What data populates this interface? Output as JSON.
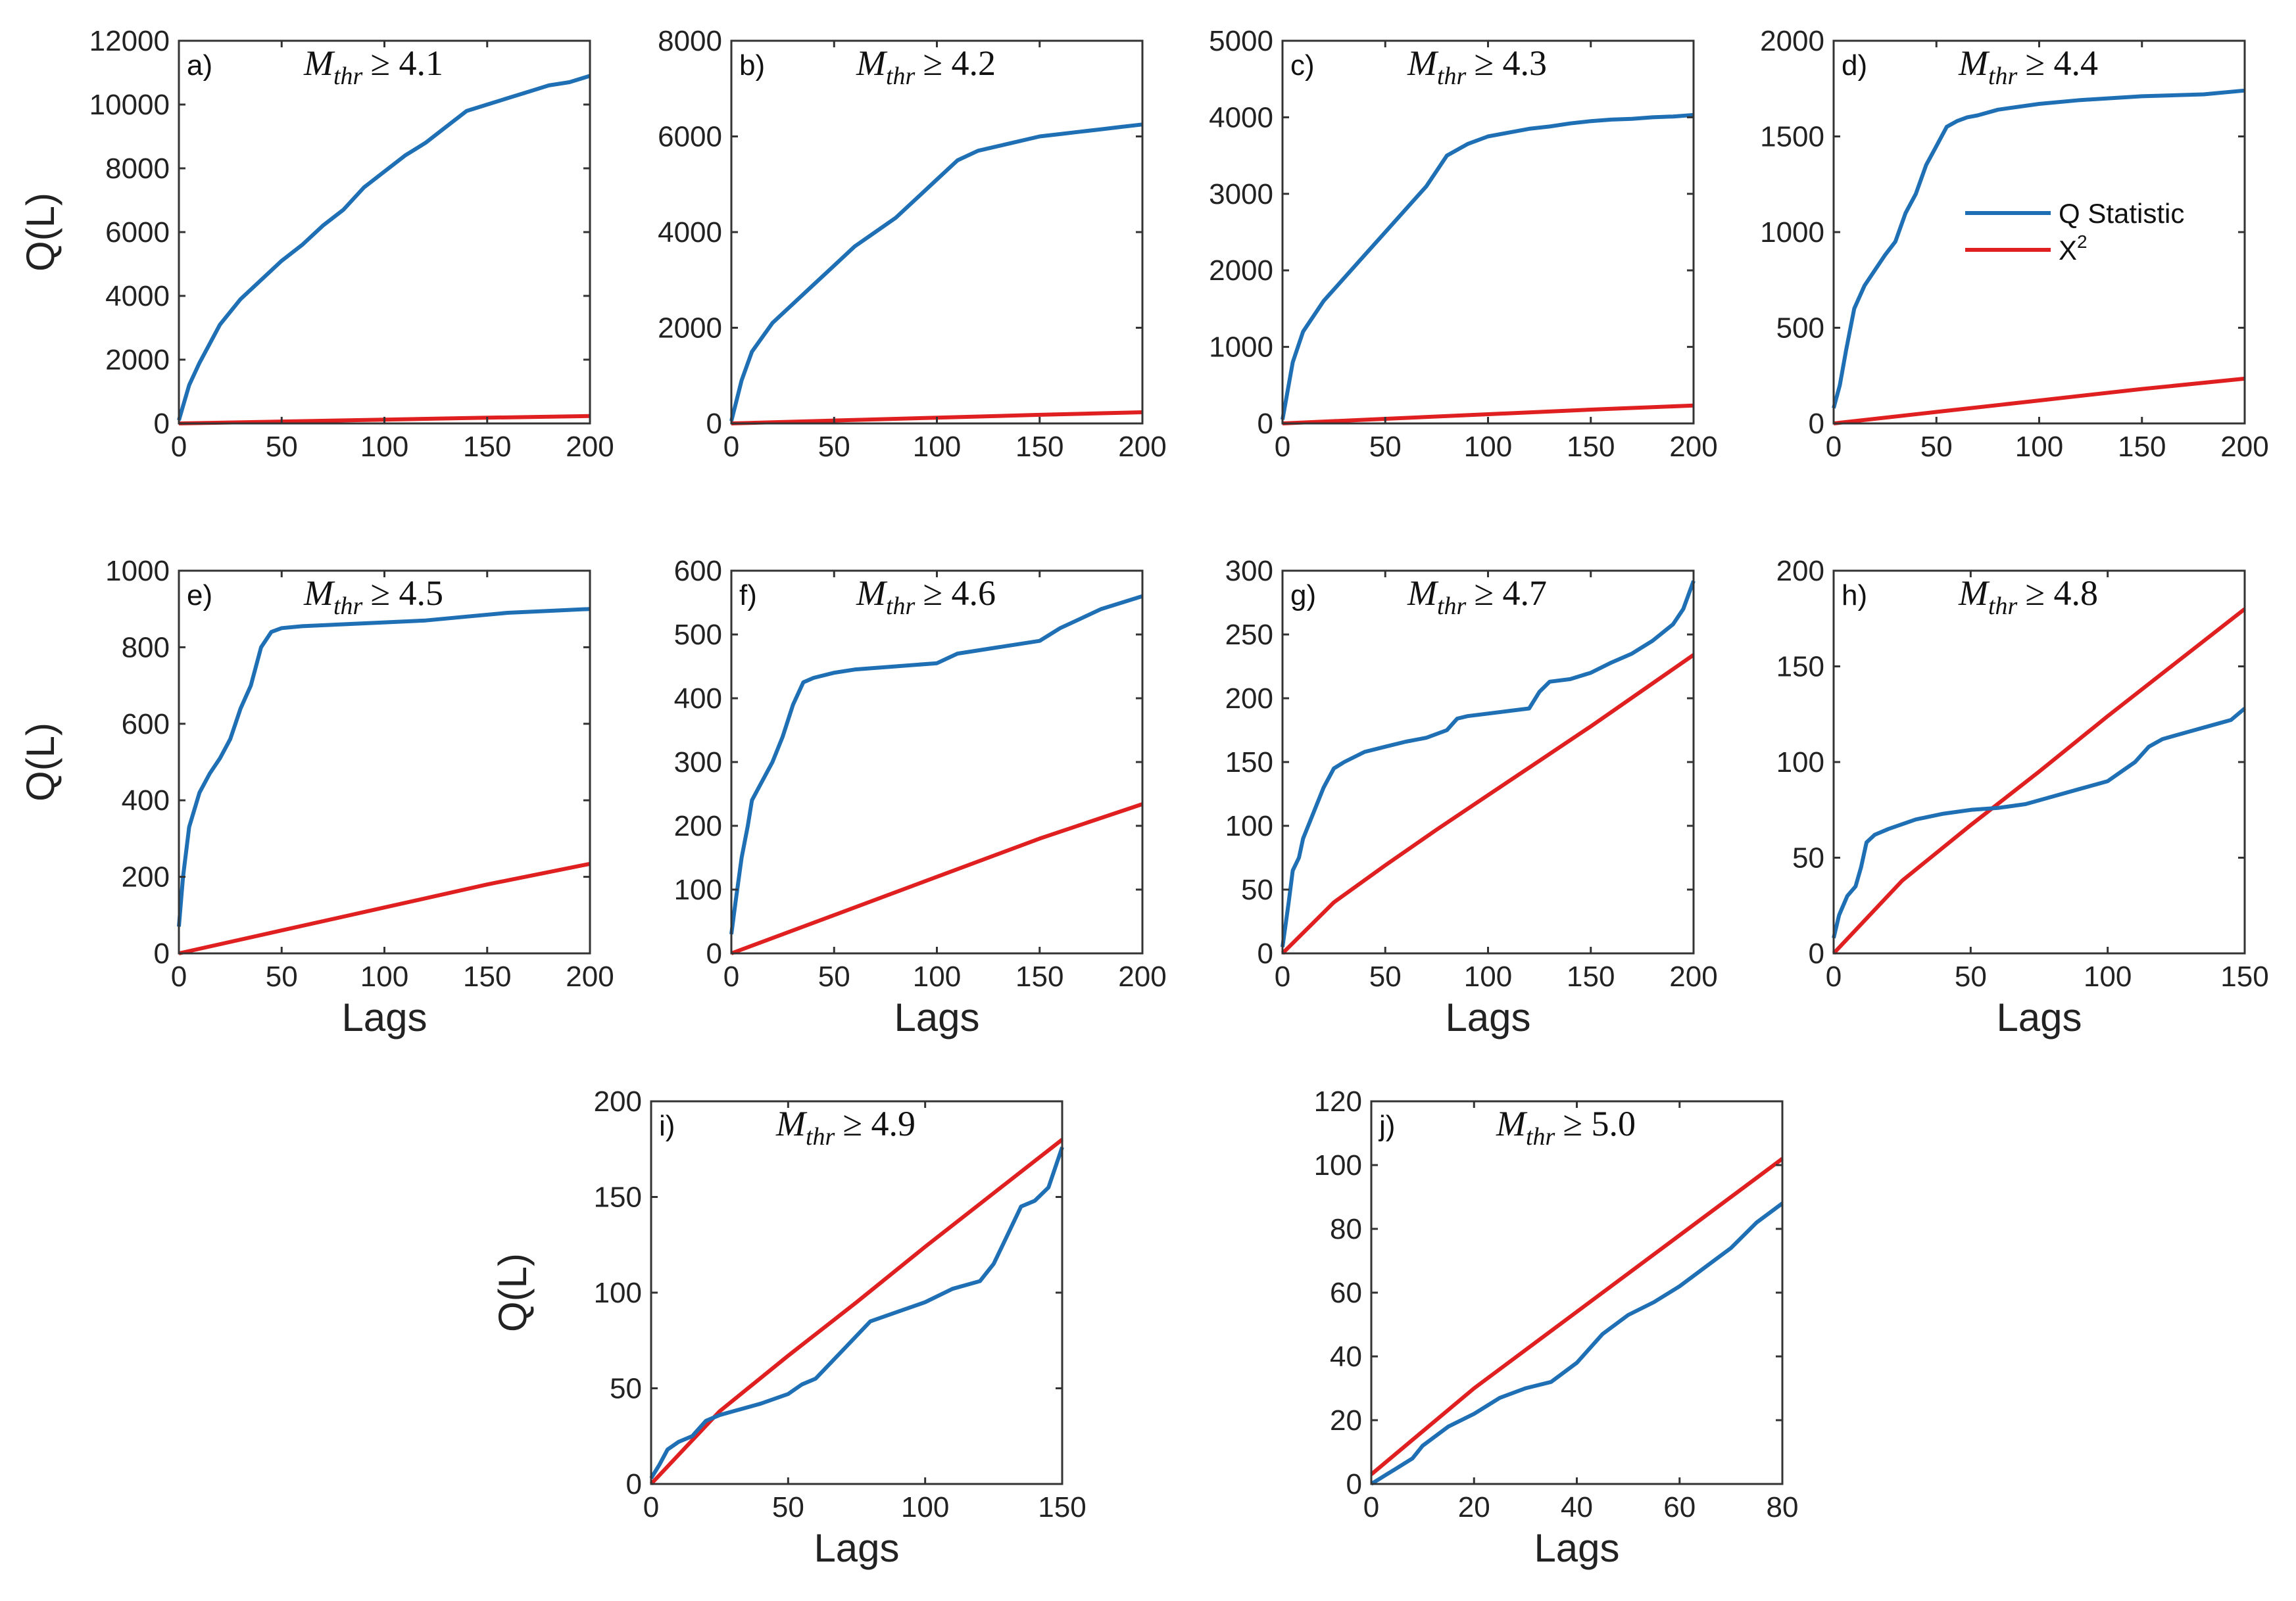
{
  "figure": {
    "colors": {
      "q": "#1f6fb5",
      "chi": "#e02020",
      "axis": "#333333"
    },
    "legend": {
      "q_label": "Q Statistic",
      "chi_label": "X",
      "chi_sup": "2",
      "placement": "top-right of panel d"
    }
  },
  "chart_data": [
    {
      "type": "line",
      "panel": "a)",
      "title_sym": "M",
      "title_sub": "thr",
      "title_rel": "≥ 4.1",
      "xlabel": "",
      "ylabel": "Q(L)",
      "xlim": [
        0,
        200
      ],
      "ylim": [
        0,
        12000
      ],
      "xticks": [
        0,
        50,
        100,
        150,
        200
      ],
      "yticks": [
        0,
        2000,
        4000,
        6000,
        8000,
        10000,
        12000
      ],
      "series": [
        {
          "name": "Q Statistic",
          "x": [
            0,
            5,
            10,
            20,
            30,
            40,
            50,
            60,
            70,
            80,
            90,
            100,
            110,
            120,
            130,
            140,
            150,
            160,
            170,
            180,
            190,
            200
          ],
          "y": [
            100,
            1200,
            1900,
            3100,
            3900,
            4500,
            5100,
            5600,
            6200,
            6700,
            7400,
            7900,
            8400,
            8800,
            9300,
            9800,
            10000,
            10200,
            10400,
            10600,
            10700,
            10900
          ]
        },
        {
          "name": "X2",
          "x": [
            0,
            50,
            100,
            150,
            200
          ],
          "y": [
            0,
            60,
            120,
            180,
            234
          ]
        }
      ]
    },
    {
      "type": "line",
      "panel": "b)",
      "title_sym": "M",
      "title_sub": "thr",
      "title_rel": "≥ 4.2",
      "xlabel": "",
      "ylabel": "",
      "xlim": [
        0,
        200
      ],
      "ylim": [
        0,
        8000
      ],
      "xticks": [
        0,
        50,
        100,
        150,
        200
      ],
      "yticks": [
        0,
        2000,
        4000,
        6000,
        8000
      ],
      "series": [
        {
          "name": "Q Statistic",
          "x": [
            0,
            5,
            10,
            20,
            30,
            40,
            50,
            60,
            70,
            80,
            90,
            100,
            110,
            120,
            130,
            140,
            150,
            160,
            170,
            180,
            190,
            200
          ],
          "y": [
            50,
            900,
            1500,
            2100,
            2500,
            2900,
            3300,
            3700,
            4000,
            4300,
            4700,
            5100,
            5500,
            5700,
            5800,
            5900,
            6000,
            6050,
            6100,
            6150,
            6200,
            6250
          ]
        },
        {
          "name": "X2",
          "x": [
            0,
            50,
            100,
            150,
            200
          ],
          "y": [
            0,
            60,
            120,
            180,
            234
          ]
        }
      ]
    },
    {
      "type": "line",
      "panel": "c)",
      "title_sym": "M",
      "title_sub": "thr",
      "title_rel": "≥ 4.3",
      "xlabel": "",
      "ylabel": "",
      "xlim": [
        0,
        200
      ],
      "ylim": [
        0,
        5000
      ],
      "xticks": [
        0,
        50,
        100,
        150,
        200
      ],
      "yticks": [
        0,
        1000,
        2000,
        3000,
        4000,
        5000
      ],
      "series": [
        {
          "name": "Q Statistic",
          "x": [
            0,
            5,
            10,
            20,
            30,
            40,
            50,
            60,
            70,
            80,
            90,
            100,
            110,
            120,
            130,
            140,
            150,
            160,
            170,
            180,
            190,
            200
          ],
          "y": [
            50,
            800,
            1200,
            1600,
            1900,
            2200,
            2500,
            2800,
            3100,
            3500,
            3650,
            3750,
            3800,
            3850,
            3880,
            3920,
            3950,
            3970,
            3980,
            4000,
            4010,
            4030
          ]
        },
        {
          "name": "X2",
          "x": [
            0,
            50,
            100,
            150,
            200
          ],
          "y": [
            0,
            60,
            120,
            180,
            234
          ]
        }
      ]
    },
    {
      "type": "line",
      "panel": "d)",
      "title_sym": "M",
      "title_sub": "thr",
      "title_rel": "≥ 4.4",
      "xlabel": "",
      "ylabel": "",
      "xlim": [
        0,
        200
      ],
      "ylim": [
        0,
        2000
      ],
      "xticks": [
        0,
        50,
        100,
        150,
        200
      ],
      "yticks": [
        0,
        500,
        1000,
        1500,
        2000
      ],
      "series": [
        {
          "name": "Q Statistic",
          "x": [
            0,
            3,
            6,
            10,
            15,
            20,
            25,
            30,
            35,
            40,
            45,
            50,
            55,
            60,
            65,
            70,
            80,
            100,
            120,
            150,
            180,
            200
          ],
          "y": [
            80,
            200,
            380,
            600,
            720,
            800,
            880,
            950,
            1100,
            1200,
            1350,
            1450,
            1550,
            1580,
            1600,
            1610,
            1640,
            1670,
            1690,
            1710,
            1720,
            1740
          ]
        },
        {
          "name": "X2",
          "x": [
            0,
            50,
            100,
            150,
            200
          ],
          "y": [
            0,
            60,
            120,
            180,
            234
          ]
        }
      ]
    },
    {
      "type": "line",
      "panel": "e)",
      "title_sym": "M",
      "title_sub": "thr",
      "title_rel": "≥ 4.5",
      "xlabel": "Lags",
      "ylabel": "Q(L)",
      "xlim": [
        0,
        200
      ],
      "ylim": [
        0,
        1000
      ],
      "xticks": [
        0,
        50,
        100,
        150,
        200
      ],
      "yticks": [
        0,
        200,
        400,
        600,
        800,
        1000
      ],
      "series": [
        {
          "name": "Q Statistic",
          "x": [
            0,
            2,
            5,
            10,
            15,
            20,
            25,
            30,
            35,
            40,
            45,
            50,
            60,
            80,
            100,
            120,
            140,
            160,
            180,
            200
          ],
          "y": [
            70,
            200,
            330,
            420,
            470,
            510,
            560,
            640,
            700,
            800,
            840,
            850,
            855,
            860,
            865,
            870,
            880,
            890,
            895,
            900
          ]
        },
        {
          "name": "X2",
          "x": [
            0,
            50,
            100,
            150,
            200
          ],
          "y": [
            0,
            60,
            120,
            180,
            234
          ]
        }
      ]
    },
    {
      "type": "line",
      "panel": "f)",
      "title_sym": "M",
      "title_sub": "thr",
      "title_rel": "≥ 4.6",
      "xlabel": "Lags",
      "ylabel": "",
      "xlim": [
        0,
        200
      ],
      "ylim": [
        0,
        600
      ],
      "xticks": [
        0,
        50,
        100,
        150,
        200
      ],
      "yticks": [
        0,
        100,
        200,
        300,
        400,
        500,
        600
      ],
      "series": [
        {
          "name": "Q Statistic",
          "x": [
            0,
            2,
            5,
            8,
            10,
            15,
            20,
            25,
            30,
            35,
            40,
            50,
            60,
            80,
            100,
            110,
            130,
            150,
            160,
            170,
            180,
            190,
            200
          ],
          "y": [
            30,
            80,
            150,
            200,
            240,
            270,
            300,
            340,
            390,
            425,
            432,
            440,
            445,
            450,
            455,
            470,
            480,
            490,
            510,
            525,
            540,
            550,
            560
          ]
        },
        {
          "name": "X2",
          "x": [
            0,
            50,
            100,
            150,
            200
          ],
          "y": [
            0,
            60,
            120,
            180,
            234
          ]
        }
      ]
    },
    {
      "type": "line",
      "panel": "g)",
      "title_sym": "M",
      "title_sub": "thr",
      "title_rel": "≥ 4.7",
      "xlabel": "Lags",
      "ylabel": "",
      "xlim": [
        0,
        200
      ],
      "ylim": [
        0,
        300
      ],
      "xticks": [
        0,
        50,
        100,
        150,
        200
      ],
      "yticks": [
        0,
        50,
        100,
        150,
        200,
        250,
        300
      ],
      "series": [
        {
          "name": "Q Statistic",
          "x": [
            0,
            3,
            5,
            8,
            10,
            15,
            20,
            25,
            30,
            40,
            50,
            60,
            70,
            80,
            85,
            90,
            100,
            110,
            120,
            125,
            130,
            140,
            150,
            160,
            170,
            180,
            190,
            195,
            200
          ],
          "y": [
            5,
            40,
            65,
            75,
            90,
            110,
            130,
            145,
            150,
            158,
            162,
            166,
            169,
            175,
            184,
            186,
            188,
            190,
            192,
            205,
            213,
            215,
            220,
            228,
            235,
            245,
            258,
            270,
            292
          ]
        },
        {
          "name": "X2",
          "x": [
            0,
            25,
            50,
            75,
            100,
            125,
            150,
            175,
            200
          ],
          "y": [
            0,
            40,
            69,
            97,
            124,
            151,
            178,
            206,
            234
          ]
        }
      ]
    },
    {
      "type": "line",
      "panel": "h)",
      "title_sym": "M",
      "title_sub": "thr",
      "title_rel": "≥ 4.8",
      "xlabel": "Lags",
      "ylabel": "",
      "xlim": [
        0,
        150
      ],
      "ylim": [
        0,
        200
      ],
      "xticks": [
        0,
        50,
        100,
        150
      ],
      "yticks": [
        0,
        50,
        100,
        150,
        200
      ],
      "series": [
        {
          "name": "Q Statistic",
          "x": [
            0,
            2,
            5,
            8,
            10,
            12,
            15,
            20,
            30,
            40,
            50,
            60,
            70,
            80,
            90,
            100,
            105,
            110,
            115,
            120,
            130,
            140,
            145,
            150
          ],
          "y": [
            8,
            20,
            30,
            35,
            45,
            58,
            62,
            65,
            70,
            73,
            75,
            76,
            78,
            82,
            86,
            90,
            95,
            100,
            108,
            112,
            116,
            120,
            122,
            128
          ]
        },
        {
          "name": "X2",
          "x": [
            0,
            25,
            50,
            75,
            100,
            125,
            150
          ],
          "y": [
            0,
            38,
            67,
            95,
            124,
            152,
            180
          ]
        }
      ]
    },
    {
      "type": "line",
      "panel": "i)",
      "title_sym": "M",
      "title_sub": "thr",
      "title_rel": "≥ 4.9",
      "xlabel": "Lags",
      "ylabel": "Q(L)",
      "xlim": [
        0,
        150
      ],
      "ylim": [
        0,
        200
      ],
      "xticks": [
        0,
        50,
        100,
        150
      ],
      "yticks": [
        0,
        50,
        100,
        150,
        200
      ],
      "series": [
        {
          "name": "Q Statistic",
          "x": [
            0,
            3,
            6,
            10,
            15,
            20,
            25,
            30,
            40,
            50,
            55,
            60,
            70,
            80,
            90,
            100,
            110,
            120,
            125,
            130,
            135,
            140,
            145,
            150
          ],
          "y": [
            3,
            10,
            18,
            22,
            25,
            33,
            36,
            38,
            42,
            47,
            52,
            55,
            70,
            85,
            90,
            95,
            102,
            106,
            115,
            130,
            145,
            148,
            155,
            176
          ]
        },
        {
          "name": "X2",
          "x": [
            0,
            25,
            50,
            75,
            100,
            125,
            150
          ],
          "y": [
            0,
            38,
            67,
            95,
            124,
            152,
            180
          ]
        }
      ]
    },
    {
      "type": "line",
      "panel": "j)",
      "title_sym": "M",
      "title_sub": "thr",
      "title_rel": "≥ 5.0",
      "xlabel": "Lags",
      "ylabel": "",
      "xlim": [
        0,
        80
      ],
      "ylim": [
        0,
        120
      ],
      "xticks": [
        0,
        20,
        40,
        60,
        80
      ],
      "yticks": [
        0,
        20,
        40,
        60,
        80,
        100,
        120
      ],
      "series": [
        {
          "name": "Q Statistic",
          "x": [
            0,
            3,
            5,
            8,
            10,
            15,
            20,
            25,
            30,
            35,
            40,
            45,
            50,
            55,
            60,
            65,
            70,
            75,
            80
          ],
          "y": [
            0,
            3,
            5,
            8,
            12,
            18,
            22,
            27,
            30,
            32,
            38,
            47,
            53,
            57,
            62,
            68,
            74,
            82,
            88
          ]
        },
        {
          "name": "X2",
          "x": [
            0,
            20,
            40,
            60,
            80
          ],
          "y": [
            3,
            30,
            54,
            78,
            102
          ]
        }
      ]
    }
  ]
}
